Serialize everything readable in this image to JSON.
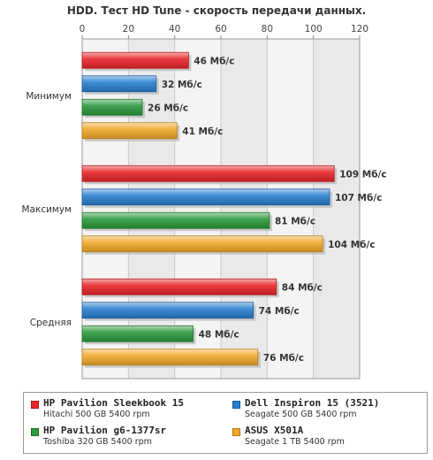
{
  "chart_data": {
    "type": "bar",
    "orientation": "horizontal",
    "title": "HDD. Тест HD Tune - скорость передачи данных.",
    "xlim": [
      0,
      120
    ],
    "x_ticks": [
      "0",
      "20",
      "40",
      "60",
      "80",
      "100",
      "120"
    ],
    "grid": true,
    "legend_position": "bottom",
    "unit": "Мб/с",
    "categories": [
      "Минимум",
      "Максимум",
      "Средняя"
    ],
    "series": [
      {
        "name": "HP Pavilion Sleekbook 15",
        "sub": "Hitachi 500 GB 5400 rpm",
        "color": "#e8262a",
        "values": [
          46,
          109,
          84
        ]
      },
      {
        "name": "Dell Inspiron 15 (3521)",
        "sub": "Seagate 500 GB 5400 rpm",
        "color": "#2a7fd0",
        "values": [
          32,
          107,
          74
        ]
      },
      {
        "name": "HP Pavilion g6-1377sr",
        "sub": "Toshiba 320 GB 5400 rpm",
        "color": "#2c9a3c",
        "values": [
          26,
          81,
          48
        ]
      },
      {
        "name": "ASUS X501A",
        "sub": "Seagate 1 TB 5400 rpm",
        "color": "#f0a82a",
        "values": [
          41,
          104,
          76
        ]
      }
    ]
  }
}
